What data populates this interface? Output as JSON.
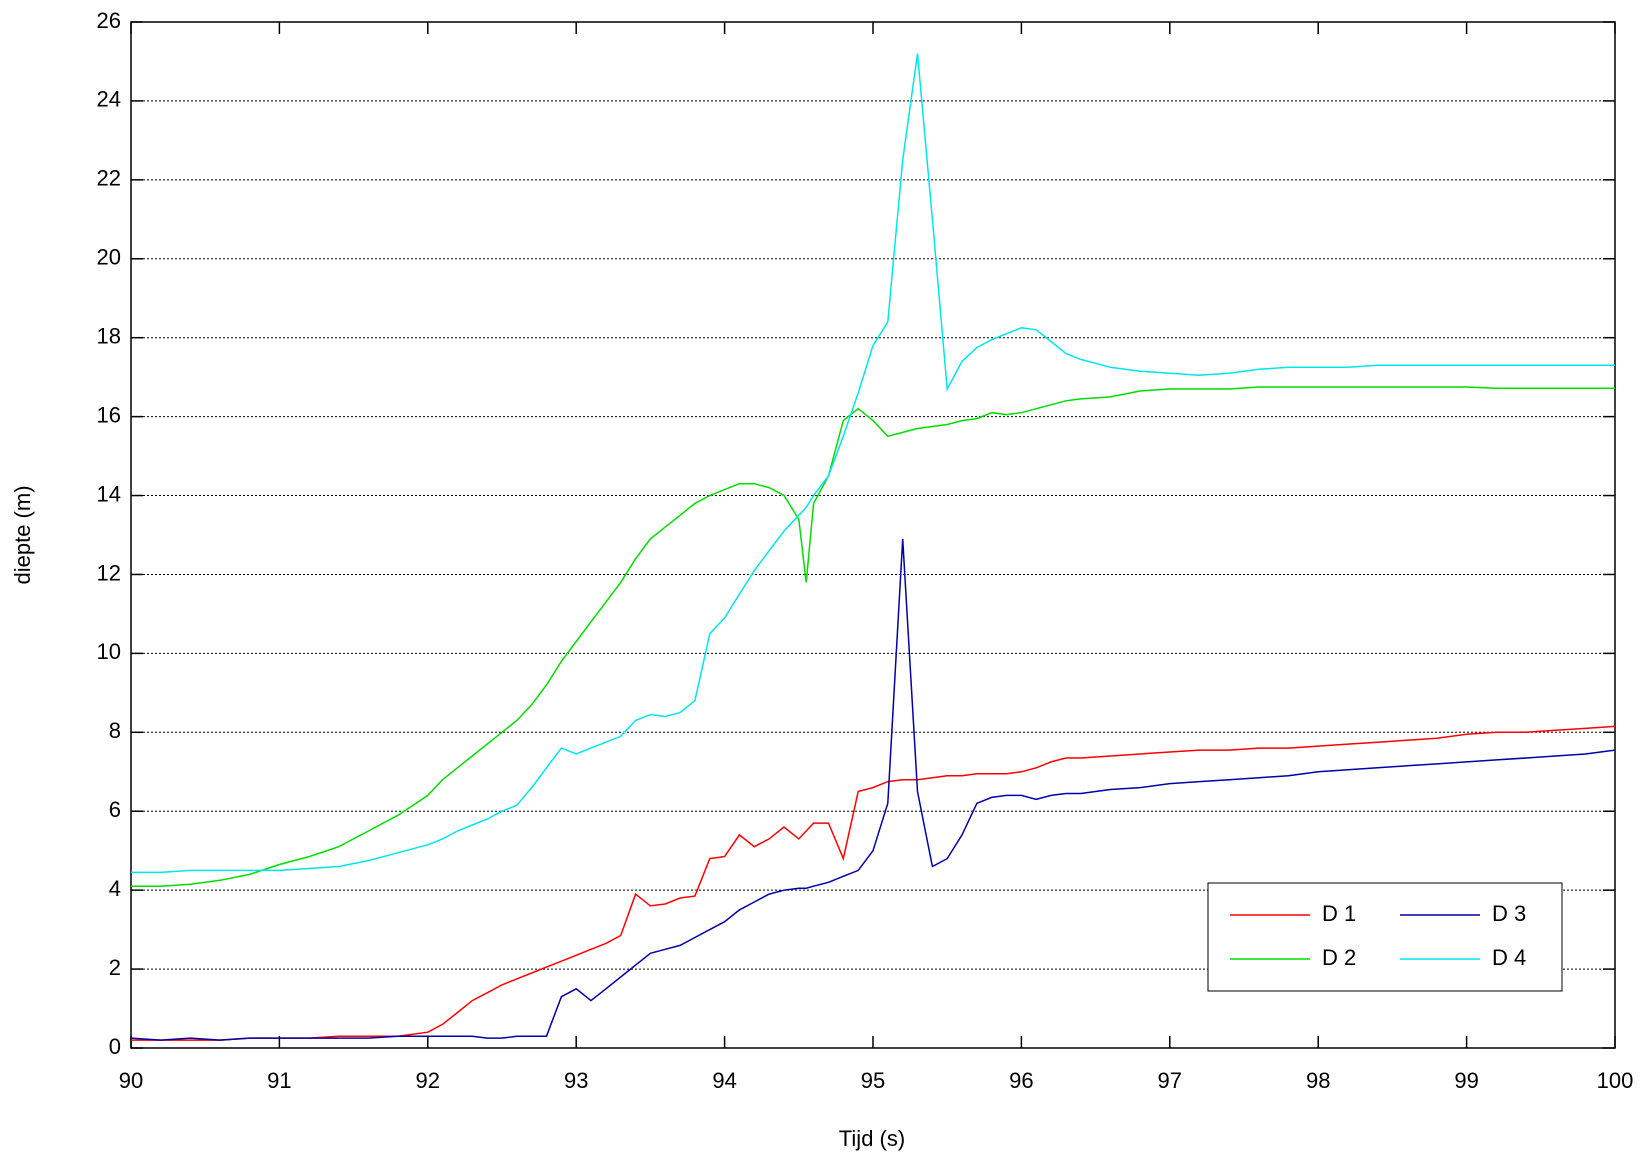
{
  "chart_data": {
    "type": "line",
    "x_label": "Tijd (s)",
    "y_label": "diepte (m)",
    "x": [
      90.0,
      90.2,
      90.4,
      90.6,
      90.8,
      91.0,
      91.2,
      91.4,
      91.6,
      91.8,
      92.0,
      92.1,
      92.2,
      92.3,
      92.4,
      92.5,
      92.6,
      92.7,
      92.8,
      92.9,
      93.0,
      93.1,
      93.2,
      93.3,
      93.4,
      93.5,
      93.6,
      93.7,
      93.8,
      93.9,
      94.0,
      94.1,
      94.2,
      94.3,
      94.4,
      94.5,
      94.55,
      94.6,
      94.7,
      94.8,
      94.9,
      95.0,
      95.1,
      95.2,
      95.3,
      95.4,
      95.5,
      95.6,
      95.7,
      95.8,
      95.9,
      96.0,
      96.1,
      96.2,
      96.3,
      96.4,
      96.6,
      96.8,
      97.0,
      97.2,
      97.4,
      97.6,
      97.8,
      98.0,
      98.2,
      98.4,
      98.6,
      98.8,
      99.0,
      99.2,
      99.4,
      99.6,
      99.8,
      100.0
    ],
    "series": [
      {
        "name": "D 1",
        "color": "#ff0000",
        "values": [
          0.2,
          0.2,
          0.2,
          0.2,
          0.25,
          0.25,
          0.25,
          0.3,
          0.3,
          0.3,
          0.4,
          0.6,
          0.9,
          1.2,
          1.4,
          1.6,
          1.75,
          1.9,
          2.05,
          2.2,
          2.35,
          2.5,
          2.65,
          2.85,
          3.9,
          3.6,
          3.65,
          3.8,
          3.85,
          4.8,
          4.85,
          5.4,
          5.1,
          5.3,
          5.6,
          5.3,
          5.5,
          5.7,
          5.7,
          4.8,
          6.5,
          6.6,
          6.75,
          6.8,
          6.8,
          6.85,
          6.9,
          6.9,
          6.95,
          6.95,
          6.95,
          7.0,
          7.1,
          7.25,
          7.35,
          7.35,
          7.4,
          7.45,
          7.5,
          7.55,
          7.55,
          7.6,
          7.6,
          7.65,
          7.7,
          7.75,
          7.8,
          7.85,
          7.95,
          8.0,
          8.0,
          8.05,
          8.1,
          8.15
        ]
      },
      {
        "name": "D 2",
        "color": "#00dd00",
        "values": [
          4.1,
          4.1,
          4.15,
          4.25,
          4.4,
          4.65,
          4.85,
          5.1,
          5.5,
          5.9,
          6.4,
          6.8,
          7.1,
          7.4,
          7.7,
          8.0,
          8.3,
          8.7,
          9.2,
          9.8,
          10.3,
          10.8,
          11.3,
          11.8,
          12.4,
          12.9,
          13.2,
          13.5,
          13.8,
          14.0,
          14.15,
          14.3,
          14.3,
          14.2,
          14.0,
          13.4,
          11.8,
          13.8,
          14.5,
          15.9,
          16.2,
          15.9,
          15.5,
          15.6,
          15.7,
          15.75,
          15.8,
          15.9,
          15.95,
          16.1,
          16.05,
          16.1,
          16.2,
          16.3,
          16.4,
          16.45,
          16.5,
          16.65,
          16.7,
          16.7,
          16.7,
          16.75,
          16.75,
          16.75,
          16.75,
          16.75,
          16.75,
          16.75,
          16.75,
          16.72,
          16.72,
          16.72,
          16.72,
          16.72
        ]
      },
      {
        "name": "D 3",
        "color": "#0000aa",
        "values": [
          0.25,
          0.2,
          0.25,
          0.2,
          0.25,
          0.25,
          0.25,
          0.25,
          0.25,
          0.3,
          0.3,
          0.3,
          0.3,
          0.3,
          0.25,
          0.25,
          0.3,
          0.3,
          0.3,
          1.3,
          1.5,
          1.2,
          1.5,
          1.8,
          2.1,
          2.4,
          2.5,
          2.6,
          2.8,
          3.0,
          3.2,
          3.5,
          3.7,
          3.9,
          4.0,
          4.05,
          4.05,
          4.1,
          4.2,
          4.35,
          4.5,
          5.0,
          6.2,
          12.9,
          6.5,
          4.6,
          4.8,
          5.4,
          6.2,
          6.35,
          6.4,
          6.4,
          6.3,
          6.4,
          6.45,
          6.45,
          6.55,
          6.6,
          6.7,
          6.75,
          6.8,
          6.85,
          6.9,
          7.0,
          7.05,
          7.1,
          7.15,
          7.2,
          7.25,
          7.3,
          7.35,
          7.4,
          7.45,
          7.55
        ]
      },
      {
        "name": "D 4",
        "color": "#00e5ee",
        "values": [
          4.45,
          4.45,
          4.5,
          4.5,
          4.5,
          4.5,
          4.55,
          4.6,
          4.75,
          4.95,
          5.15,
          5.3,
          5.5,
          5.65,
          5.8,
          6.0,
          6.15,
          6.6,
          7.1,
          7.6,
          7.45,
          7.6,
          7.75,
          7.9,
          8.3,
          8.45,
          8.4,
          8.5,
          8.8,
          10.5,
          10.9,
          11.5,
          12.1,
          12.6,
          13.1,
          13.5,
          13.7,
          14.0,
          14.5,
          15.5,
          16.6,
          17.8,
          18.4,
          22.5,
          25.2,
          21.0,
          16.7,
          17.4,
          17.75,
          17.95,
          18.1,
          18.25,
          18.2,
          17.9,
          17.6,
          17.45,
          17.25,
          17.15,
          17.1,
          17.05,
          17.1,
          17.2,
          17.25,
          17.25,
          17.25,
          17.3,
          17.3,
          17.3,
          17.3,
          17.3,
          17.3,
          17.3,
          17.3,
          17.3
        ]
      }
    ],
    "xlim": [
      90,
      100
    ],
    "xticks": [
      90,
      91,
      92,
      93,
      94,
      95,
      96,
      97,
      98,
      99,
      100
    ],
    "ylim": [
      0,
      26
    ],
    "yticks": [
      0,
      2,
      4,
      6,
      8,
      10,
      12,
      14,
      16,
      18,
      20,
      22,
      24,
      26
    ],
    "grid": true,
    "legend": "lower right"
  }
}
